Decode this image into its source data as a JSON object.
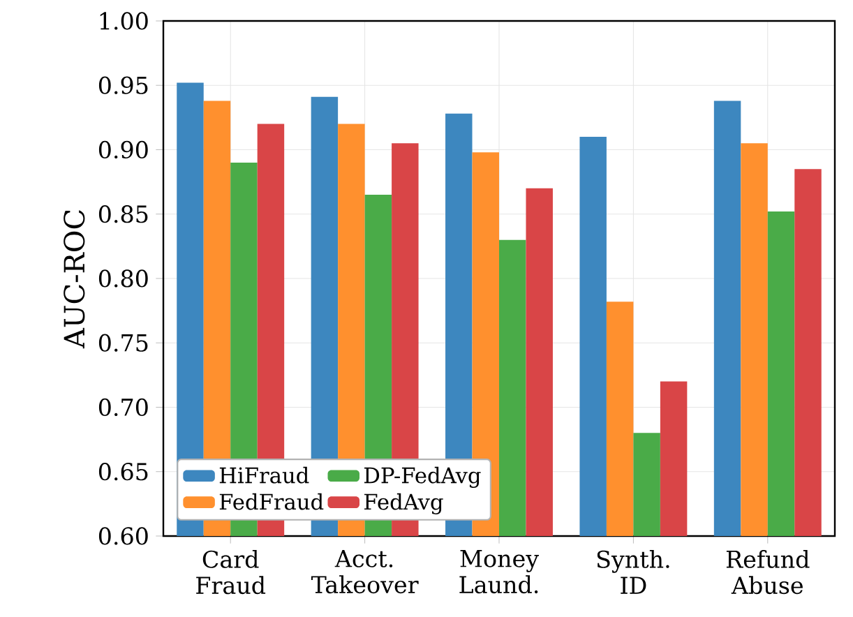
{
  "chart_data": {
    "type": "bar",
    "ylabel": "AUC-ROC",
    "categories": [
      "Card\nFraud",
      "Acct.\nTakeover",
      "Money\nLaund.",
      "Synth.\nID",
      "Refund\nAbuse"
    ],
    "series": [
      {
        "name": "HiFraud",
        "color": "#3d87bf",
        "values": [
          0.952,
          0.941,
          0.928,
          0.91,
          0.938
        ]
      },
      {
        "name": "FedFraud",
        "color": "#ff902e",
        "values": [
          0.938,
          0.92,
          0.898,
          0.782,
          0.905
        ]
      },
      {
        "name": "DP-FedAvg",
        "color": "#4aab48",
        "values": [
          0.89,
          0.865,
          0.83,
          0.68,
          0.852
        ]
      },
      {
        "name": "FedAvg",
        "color": "#d94547",
        "values": [
          0.92,
          0.905,
          0.87,
          0.72,
          0.885
        ]
      }
    ],
    "ylim": [
      0.6,
      1.0
    ],
    "yticks": [
      {
        "value": 0.6,
        "label": "0.60"
      },
      {
        "value": 0.65,
        "label": "0.65"
      },
      {
        "value": 0.7,
        "label": "0.70"
      },
      {
        "value": 0.75,
        "label": "0.75"
      },
      {
        "value": 0.8,
        "label": "0.80"
      },
      {
        "value": 0.85,
        "label": "0.85"
      },
      {
        "value": 0.9,
        "label": "0.90"
      },
      {
        "value": 0.95,
        "label": "0.95"
      },
      {
        "value": 1.0,
        "label": "1.00"
      }
    ],
    "grid": true,
    "legend": "bottom left"
  }
}
